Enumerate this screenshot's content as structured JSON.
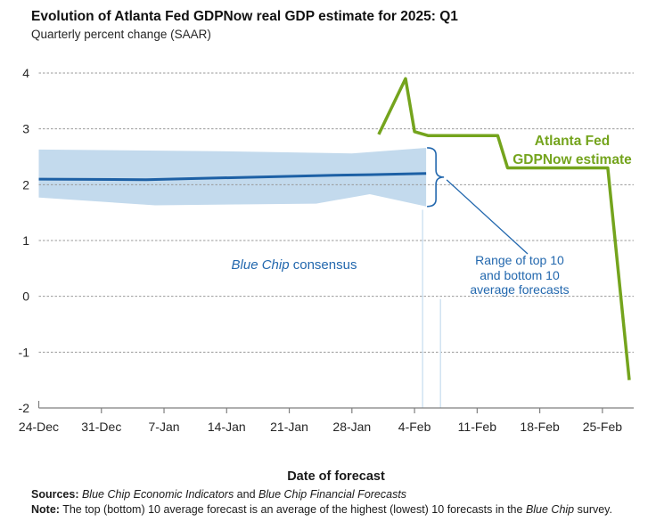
{
  "header": {
    "title": "Evolution of Atlanta Fed GDPNow real GDP estimate for 2025: Q1",
    "subtitle": "Quarterly percent change (SAAR)"
  },
  "chart_data": {
    "type": "line",
    "title": "Evolution of Atlanta Fed GDPNow real GDP estimate for 2025: Q1",
    "subtitle": "Quarterly percent change (SAAR)",
    "xlabel": "Date of forecast",
    "ylabel": "Quarterly percent change (SAAR)",
    "ylim": [
      -2,
      4
    ],
    "yticks": [
      -2,
      -1,
      0,
      1,
      2,
      3,
      4
    ],
    "grid": "horizontal-dashed",
    "x_domain_days": [
      0,
      66.5
    ],
    "xticks": [
      {
        "label": "24-Dec",
        "d": 0
      },
      {
        "label": "31-Dec",
        "d": 7
      },
      {
        "label": "7-Jan",
        "d": 14
      },
      {
        "label": "14-Jan",
        "d": 21
      },
      {
        "label": "21-Jan",
        "d": 28
      },
      {
        "label": "28-Jan",
        "d": 35
      },
      {
        "label": "4-Feb",
        "d": 42
      },
      {
        "label": "11-Feb",
        "d": 49
      },
      {
        "label": "18-Feb",
        "d": 56
      },
      {
        "label": "25-Feb",
        "d": 63
      }
    ],
    "band_color": "#C3DAED",
    "series": [
      {
        "name": "Atlanta Fed GDPNow estimate",
        "role": "gdpnow",
        "color": "#74A41D",
        "points": [
          {
            "date": "31-Jan",
            "d": 38,
            "v": 2.9
          },
          {
            "date": "3-Feb",
            "d": 41,
            "v": 3.9
          },
          {
            "date": "5-Feb",
            "d": 42,
            "v": 2.95
          },
          {
            "date": "7-Feb",
            "d": 43.5,
            "v": 2.88
          },
          {
            "date": "13-Feb",
            "d": 51.3,
            "v": 2.88
          },
          {
            "date": "14-Feb",
            "d": 52.4,
            "v": 2.3
          },
          {
            "date": "26-Feb",
            "d": 63.6,
            "v": 2.3
          },
          {
            "date": "28-Feb",
            "d": 66,
            "v": -1.5
          }
        ]
      },
      {
        "name": "Blue Chip consensus",
        "role": "consensus",
        "color": "#1D60A5",
        "points": [
          {
            "date": "24-Dec",
            "d": 0,
            "v": 2.1
          },
          {
            "date": "5-Jan",
            "d": 12,
            "v": 2.09
          },
          {
            "date": "26-Jan",
            "d": 33,
            "v": 2.17
          },
          {
            "date": "30-Jan",
            "d": 37,
            "v": 2.18
          },
          {
            "date": "6-Feb",
            "d": 43.3,
            "v": 2.2
          }
        ]
      },
      {
        "name": "Top 10 average forecast",
        "role": "band_top",
        "points": [
          {
            "d": 0,
            "v": 2.63
          },
          {
            "d": 20,
            "v": 2.6
          },
          {
            "d": 35,
            "v": 2.56
          },
          {
            "d": 43.3,
            "v": 2.66
          }
        ]
      },
      {
        "name": "Bottom 10 average forecast",
        "role": "band_bottom",
        "points": [
          {
            "d": 0,
            "v": 1.77
          },
          {
            "d": 13,
            "v": 1.63
          },
          {
            "d": 31,
            "v": 1.66
          },
          {
            "d": 37,
            "v": 1.83
          },
          {
            "d": 43.3,
            "v": 1.61
          }
        ]
      }
    ],
    "survey_markers": [
      {
        "d": 42.9,
        "from_v": 1.55
      },
      {
        "d": 44.9,
        "from_v": -0.05
      }
    ]
  },
  "annotations": {
    "blue_chip": {
      "italic": "Blue Chip",
      "rest": " consensus"
    },
    "range": "Range of top 10\nand bottom 10\naverage forecasts",
    "gdpnow_label": "Atlanta Fed\nGDPNow estimate"
  },
  "axis": {
    "x_title": "Date of forecast"
  },
  "footer": {
    "sources_label": "Sources:",
    "source1": " Blue Chip Economic Indicators",
    "conj": " and ",
    "source2": "Blue Chip Financial Forecasts",
    "note_label": "Note:",
    "note_pre": " The top (bottom) 10 average forecast is an average of the highest (lowest) 10 forecasts in the ",
    "note_italic": "Blue Chip",
    "note_post": " survey."
  },
  "colors": {
    "gdpnow_green": "#74A41D",
    "bluechip_blue": "#1D60A5",
    "annotation_blue": "#2368AE",
    "band_light_blue": "#C3DAED",
    "gridline_gray": "#999999",
    "axis_gray": "#7f7f7f"
  }
}
